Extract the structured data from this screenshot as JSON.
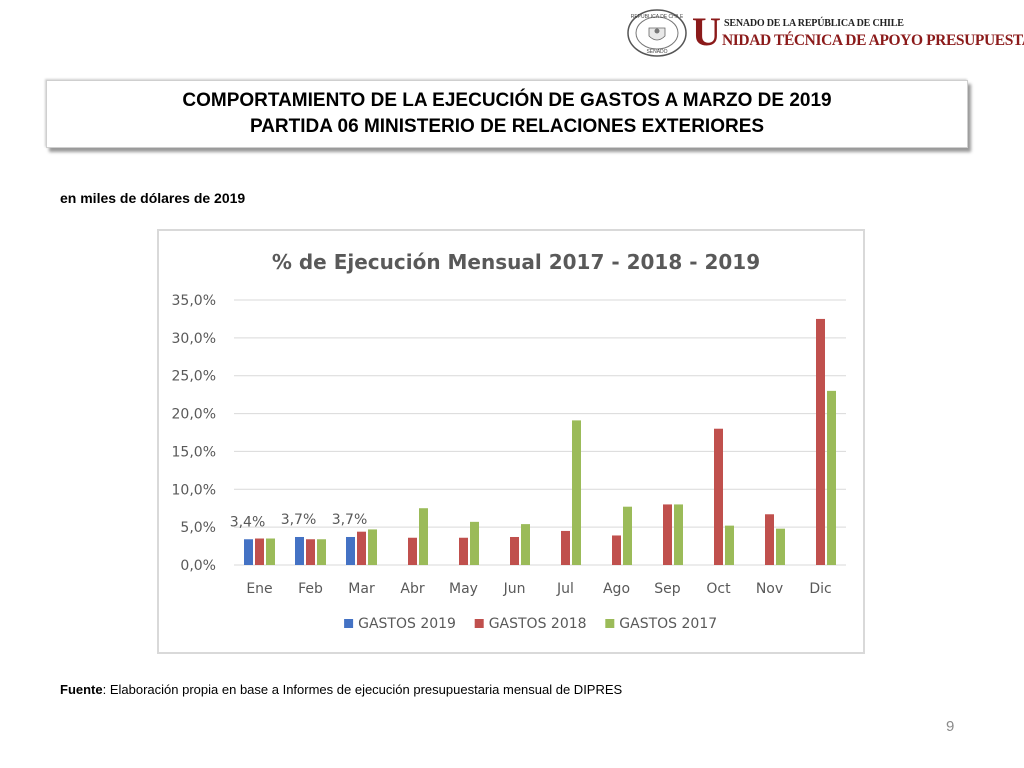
{
  "header": {
    "logo_top": "SENADO DE LA REPÚBLICA DE CHILE",
    "logo_main": "NIDAD TÉCNICA DE APOYO PRESUPUESTARIO",
    "logo_initial": "U",
    "seal_text_top": "REPÚBLICA DE CHILE",
    "seal_text_bottom": "SENADO"
  },
  "title": {
    "line1": "COMPORTAMIENTO DE LA EJECUCIÓN DE GASTOS A MARZO DE 2019",
    "line2": "PARTIDA 06 MINISTERIO DE RELACIONES EXTERIORES"
  },
  "units": "en miles de dólares de 2019",
  "source": {
    "label": "Fuente",
    "text": ": Elaboración propia en base  a Informes de ejecución presupuestaria mensual de DIPRES"
  },
  "page_number": "9",
  "chart_data": {
    "type": "bar",
    "title": "% de Ejecución Mensual 2017 - 2018 - 2019",
    "categories": [
      "Ene",
      "Feb",
      "Mar",
      "Abr",
      "May",
      "Jun",
      "Jul",
      "Ago",
      "Sep",
      "Oct",
      "Nov",
      "Dic"
    ],
    "series": [
      {
        "name": "GASTOS 2019",
        "color": "#4472c4",
        "values": [
          3.4,
          3.7,
          3.7,
          null,
          null,
          null,
          null,
          null,
          null,
          null,
          null,
          null
        ],
        "data_labels": [
          "3,4%",
          "3,7%",
          "3,7%"
        ]
      },
      {
        "name": "GASTOS 2018",
        "color": "#c0504d",
        "values": [
          3.5,
          3.4,
          4.4,
          3.6,
          3.6,
          3.7,
          4.5,
          3.9,
          8.0,
          18.0,
          6.7,
          32.5
        ]
      },
      {
        "name": "GASTOS 2017",
        "color": "#9bbb59",
        "values": [
          3.5,
          3.4,
          4.7,
          7.5,
          5.7,
          5.4,
          19.1,
          7.7,
          8.0,
          5.2,
          4.8,
          23.0
        ]
      }
    ],
    "yticks": [
      "0,0%",
      "5,0%",
      "10,0%",
      "15,0%",
      "20,0%",
      "25,0%",
      "30,0%",
      "35,0%"
    ],
    "ylim": [
      0,
      35
    ],
    "grid": true,
    "legend": "bottom"
  }
}
